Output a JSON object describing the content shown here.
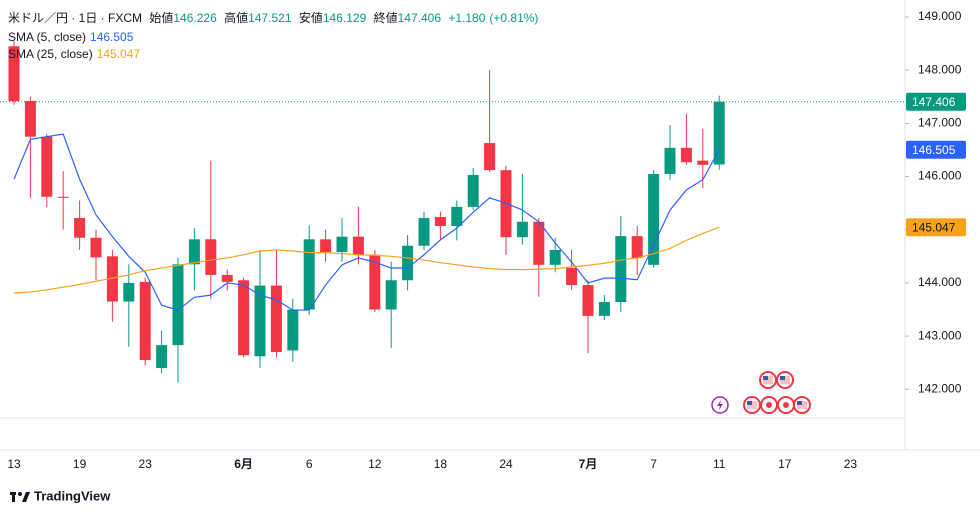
{
  "chart_data": {
    "type": "candlestick",
    "title": "米ドル／円 · 1日 · FXCM",
    "header": {
      "open_label": "始値",
      "high_label": "高値",
      "low_label": "安値",
      "close_label": "終値",
      "change": "+1.180",
      "change_pct": "(+0.81%)"
    },
    "categories": [
      "13",
      null,
      null,
      null,
      "19",
      null,
      null,
      null,
      "23",
      null,
      null,
      null,
      null,
      null,
      "6月",
      null,
      null,
      null,
      "6",
      null,
      null,
      null,
      "12",
      null,
      null,
      null,
      "18",
      null,
      null,
      null,
      "24",
      null,
      null,
      null,
      null,
      "7月",
      null,
      null,
      null,
      "7",
      null,
      null,
      null,
      "11"
    ],
    "future_categories": [
      "17",
      "23"
    ],
    "open": [
      148.45,
      147.42,
      146.75,
      145.62,
      145.22,
      144.85,
      144.5,
      143.65,
      144.02,
      142.4,
      142.83,
      144.35,
      144.82,
      144.15,
      144.05,
      142.62,
      143.95,
      142.73,
      143.5,
      144.82,
      144.58,
      144.87,
      144.53,
      143.5,
      144.05,
      144.7,
      145.24,
      145.07,
      145.43,
      146.63,
      146.12,
      144.86,
      145.15,
      144.34,
      144.28,
      143.96,
      143.38,
      143.64,
      144.88,
      144.34,
      146.05,
      146.54,
      146.3,
      146.226
    ],
    "high": [
      148.55,
      147.5,
      146.8,
      146.1,
      145.55,
      145.0,
      144.62,
      144.35,
      144.1,
      143.1,
      144.47,
      145.03,
      146.3,
      144.25,
      144.1,
      144.62,
      144.62,
      143.7,
      145.08,
      145.0,
      145.22,
      145.43,
      144.62,
      144.4,
      144.9,
      145.34,
      145.34,
      145.55,
      146.16,
      148.0,
      146.2,
      146.05,
      145.22,
      144.85,
      144.62,
      144.05,
      143.77,
      145.26,
      145.07,
      146.12,
      146.97,
      147.18,
      146.9,
      147.521
    ],
    "low": [
      147.35,
      145.6,
      145.42,
      145.0,
      144.62,
      144.05,
      143.27,
      142.8,
      142.45,
      142.3,
      142.13,
      143.86,
      143.7,
      143.86,
      142.6,
      142.4,
      142.6,
      142.52,
      143.4,
      144.4,
      144.4,
      144.35,
      143.45,
      142.78,
      143.86,
      144.62,
      144.8,
      144.8,
      145.37,
      146.09,
      144.53,
      144.72,
      143.74,
      144.2,
      143.87,
      142.68,
      143.3,
      143.45,
      144.15,
      144.29,
      145.94,
      146.22,
      145.78,
      146.129
    ],
    "close": [
      147.42,
      146.75,
      145.62,
      145.6,
      144.85,
      144.48,
      143.65,
      144.0,
      142.55,
      142.83,
      144.35,
      144.82,
      144.15,
      144.02,
      142.64,
      143.95,
      142.7,
      143.5,
      144.82,
      144.58,
      144.87,
      144.53,
      143.5,
      144.05,
      144.7,
      145.22,
      145.07,
      145.43,
      146.03,
      146.12,
      144.86,
      145.15,
      144.34,
      144.62,
      143.96,
      143.38,
      143.64,
      144.88,
      144.47,
      146.05,
      146.54,
      146.27,
      146.22,
      147.406
    ],
    "up_color": "#089981",
    "down_color": "#f23645",
    "series": [
      {
        "name": "SMA (5, close)",
        "color": "#2962ff",
        "values": [
          145.95,
          146.7,
          146.75,
          146.8,
          145.95,
          145.28,
          144.87,
          144.5,
          144.2,
          143.58,
          143.49,
          143.73,
          143.77,
          144.0,
          143.96,
          143.77,
          143.68,
          143.49,
          143.49,
          143.96,
          144.34,
          144.47,
          144.39,
          144.28,
          144.28,
          144.53,
          144.81,
          145.03,
          145.33,
          145.6,
          145.5,
          145.37,
          145.15,
          144.75,
          144.39,
          144.0,
          144.09,
          144.09,
          144.06,
          144.71,
          145.37,
          145.75,
          145.94,
          146.505
        ]
      },
      {
        "name": "SMA (25, close)",
        "color": "#f7a21b",
        "values": [
          143.81,
          143.83,
          143.87,
          143.92,
          143.97,
          144.03,
          144.09,
          144.15,
          144.23,
          144.28,
          144.33,
          144.38,
          144.43,
          144.47,
          144.53,
          144.6,
          144.62,
          144.6,
          144.57,
          144.57,
          144.55,
          144.53,
          144.52,
          144.5,
          144.47,
          144.43,
          144.38,
          144.34,
          144.3,
          144.27,
          144.25,
          144.25,
          144.26,
          144.27,
          144.3,
          144.33,
          144.37,
          144.43,
          144.47,
          144.55,
          144.65,
          144.8,
          144.93,
          145.047
        ]
      }
    ],
    "ylim": [
      141.46,
      149.32
    ],
    "yticks": [
      {
        "value": 142,
        "label": "142.000"
      },
      {
        "value": 143,
        "label": "143.000"
      },
      {
        "value": 144,
        "label": "144.000"
      },
      {
        "value": 145,
        "label": "145.000"
      },
      {
        "value": 146,
        "label": "146.000"
      },
      {
        "value": 147,
        "label": "147.000"
      },
      {
        "value": 148,
        "label": "148.000"
      },
      {
        "value": 149,
        "label": "149.000"
      }
    ],
    "brand": "TradingView"
  }
}
